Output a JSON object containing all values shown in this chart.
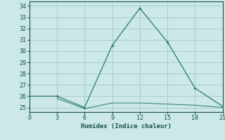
{
  "xlabel": "Humidex (Indice chaleur)",
  "line1_x": [
    0,
    3,
    6,
    9,
    12,
    15,
    18,
    21
  ],
  "line1_y": [
    26,
    26,
    25,
    30.5,
    33.8,
    30.8,
    26.7,
    25.1
  ],
  "line2_x": [
    3,
    6,
    9,
    12,
    15,
    18,
    21
  ],
  "line2_y": [
    25.8,
    24.9,
    25.4,
    25.4,
    25.3,
    25.2,
    25.0
  ],
  "line_color": "#2a7a6a",
  "bg_color": "#cce8e8",
  "grid_color": "#aacccc",
  "xlim": [
    0,
    21
  ],
  "ylim": [
    24.6,
    34.4
  ],
  "xticks": [
    0,
    3,
    6,
    9,
    12,
    15,
    18,
    21
  ],
  "yticks": [
    25,
    26,
    27,
    28,
    29,
    30,
    31,
    32,
    33,
    34
  ],
  "marker": "+"
}
